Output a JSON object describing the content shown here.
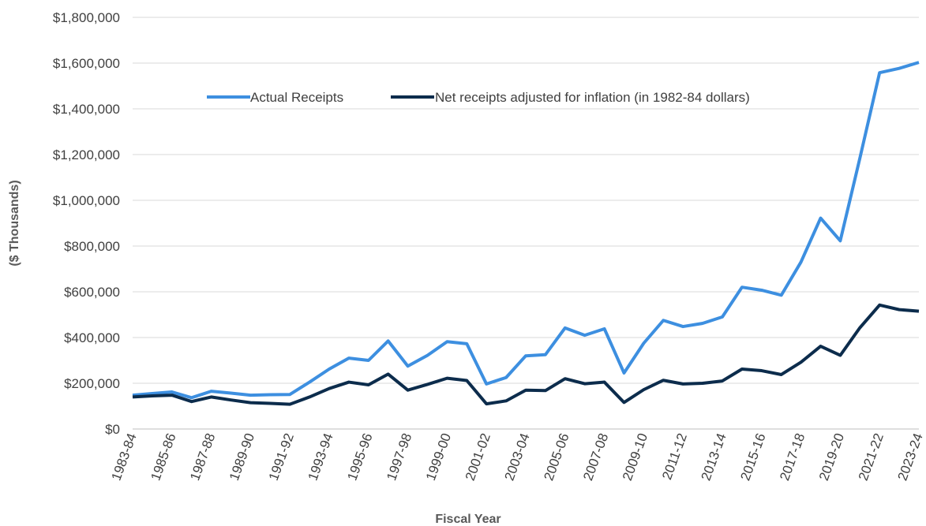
{
  "chart_data": {
    "type": "line",
    "title": "",
    "xlabel": "Fiscal Year",
    "ylabel": "($ Thousands)",
    "ylim": [
      0,
      1800000
    ],
    "yticks": [
      0,
      200000,
      400000,
      600000,
      800000,
      1000000,
      1200000,
      1400000,
      1600000,
      1800000
    ],
    "ytick_labels": [
      "$0",
      "$200,000",
      "$400,000",
      "$600,000",
      "$800,000",
      "$1,000,000",
      "$1,200,000",
      "$1,400,000",
      "$1,600,000",
      "$1,800,000"
    ],
    "grid": "horizontal",
    "legend_position": "top-center",
    "x": [
      "1983-84",
      "1984-85",
      "1985-86",
      "1986-87",
      "1987-88",
      "1988-89",
      "1989-90",
      "1990-91",
      "1991-92",
      "1992-93",
      "1993-94",
      "1994-95",
      "1995-96",
      "1996-97",
      "1997-98",
      "1998-99",
      "1999-00",
      "2000-01",
      "2001-02",
      "2002-03",
      "2003-04",
      "2004-05",
      "2005-06",
      "2006-07",
      "2007-08",
      "2008-09",
      "2009-10",
      "2010-11",
      "2011-12",
      "2012-13",
      "2013-14",
      "2014-15",
      "2015-16",
      "2016-17",
      "2017-18",
      "2018-19",
      "2019-20",
      "2020-21",
      "2021-22",
      "2022-23",
      "2023-24"
    ],
    "x_tick_labels": [
      "1983-84",
      "1985-86",
      "1987-88",
      "1989-90",
      "1991-92",
      "1993-94",
      "1995-96",
      "1997-98",
      "1999-00",
      "2001-02",
      "2003-04",
      "2005-06",
      "2007-08",
      "2009-10",
      "2011-12",
      "2013-14",
      "2015-16",
      "2017-18",
      "2019-20",
      "2021-22",
      "2023-24"
    ],
    "series": [
      {
        "name": "Actual Receipts",
        "color": "#3d8fe0",
        "values": [
          148000,
          155000,
          162000,
          137000,
          165000,
          157000,
          148000,
          150000,
          151000,
          205000,
          262000,
          310000,
          300000,
          385000,
          275000,
          322000,
          382000,
          373000,
          197000,
          225000,
          320000,
          325000,
          442000,
          410000,
          438000,
          245000,
          375000,
          475000,
          448000,
          462000,
          490000,
          620000,
          607000,
          585000,
          730000,
          922000,
          823000,
          1185000,
          1558000,
          1577000,
          1603000
        ]
      },
      {
        "name": "Net receipts adjusted for inflation (in 1982-84 dollars)",
        "color": "#0c2c4c",
        "values": [
          140000,
          145000,
          148000,
          120000,
          140000,
          127000,
          115000,
          112000,
          108000,
          140000,
          177000,
          205000,
          193000,
          240000,
          170000,
          195000,
          222000,
          212000,
          110000,
          123000,
          170000,
          168000,
          220000,
          198000,
          205000,
          116000,
          172000,
          213000,
          197000,
          200000,
          210000,
          262000,
          255000,
          238000,
          292000,
          362000,
          322000,
          443000,
          542000,
          522000,
          515000
        ]
      }
    ]
  }
}
